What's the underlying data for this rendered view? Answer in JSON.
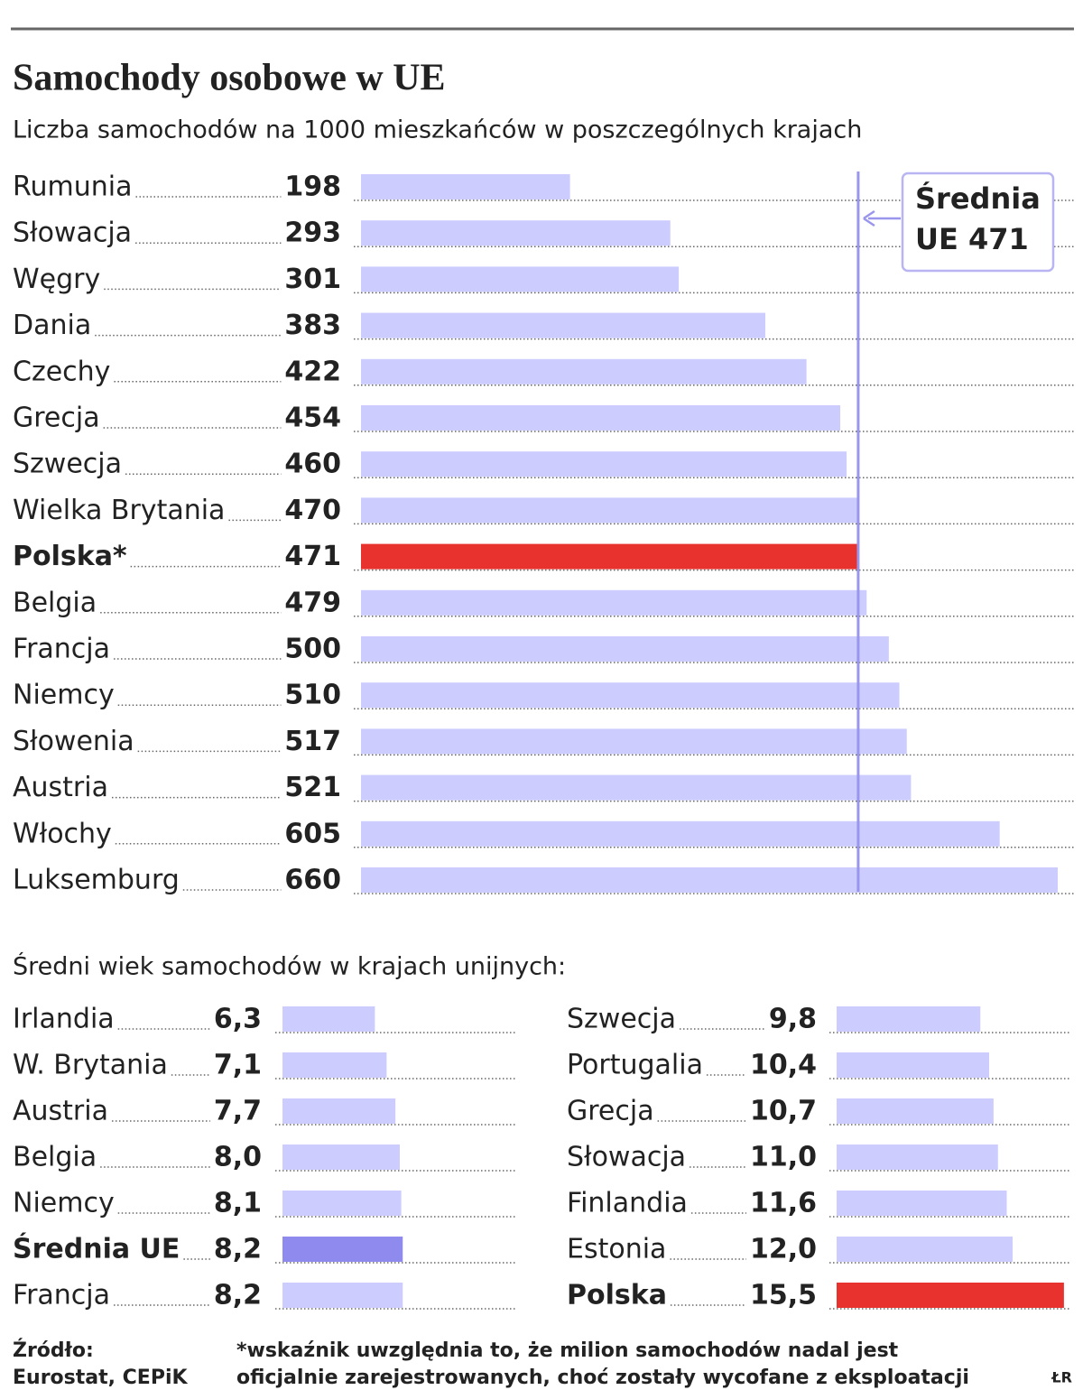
{
  "chart_data": [
    {
      "type": "bar",
      "orientation": "horizontal",
      "title": "Samochody osobowe w UE",
      "subtitle": "Liczba samochodów na 1000 mieszkańców w poszczególnych krajach",
      "categories": [
        "Rumunia",
        "Słowacja",
        "Węgry",
        "Dania",
        "Czechy",
        "Grecja",
        "Szwecja",
        "Wielka Brytania",
        "Polska*",
        "Belgia",
        "Francja",
        "Niemcy",
        "Słowenia",
        "Austria",
        "Włochy",
        "Luksemburg"
      ],
      "values": [
        198,
        293,
        301,
        383,
        422,
        454,
        460,
        470,
        471,
        479,
        500,
        510,
        517,
        521,
        605,
        660
      ],
      "color": "#ccccff",
      "colors": [
        "#ccccff",
        "#ccccff",
        "#ccccff",
        "#ccccff",
        "#ccccff",
        "#ccccff",
        "#ccccff",
        "#ccccff",
        "#e8322e",
        "#ccccff",
        "#ccccff",
        "#ccccff",
        "#ccccff",
        "#ccccff",
        "#ccccff",
        "#ccccff"
      ],
      "xlim": [
        0,
        660
      ],
      "reference_line": {
        "value": 471,
        "color": "#9a96ee",
        "label": [
          "Średnia",
          "UE 471"
        ]
      }
    },
    {
      "type": "bar",
      "orientation": "horizontal",
      "title": "Średni wiek samochodów w krajach unijnych:",
      "columns": 2,
      "categories": [
        "Irlandia",
        "W. Brytania",
        "Austria",
        "Belgia",
        "Niemcy",
        "Średnia UE",
        "Francja",
        "Szwecja",
        "Portugalia",
        "Grecja",
        "Słowacja",
        "Finlandia",
        "Estonia",
        "Polska"
      ],
      "values": [
        6.3,
        7.1,
        7.7,
        8.0,
        8.1,
        8.2,
        8.2,
        9.8,
        10.4,
        10.7,
        11.0,
        11.6,
        12.0,
        15.5
      ],
      "value_labels": [
        "6,3",
        "7,1",
        "7,7",
        "8,0",
        "8,1",
        "8,2",
        "8,2",
        "9,8",
        "10,4",
        "10,7",
        "11,0",
        "11,6",
        "12,0",
        "15,5"
      ],
      "color": "#ccccff",
      "colors": [
        "#ccccff",
        "#ccccff",
        "#ccccff",
        "#ccccff",
        "#ccccff",
        "#8f8aee",
        "#ccccff",
        "#ccccff",
        "#ccccff",
        "#ccccff",
        "#ccccff",
        "#ccccff",
        "#ccccff",
        "#e8322e"
      ],
      "xlim": [
        0,
        16
      ]
    }
  ],
  "footer": {
    "source": [
      "Źródło:",
      "Eurostat, CEPiK"
    ],
    "note": [
      "*wskaźnik uwzględnia to, że milion samochodów nadal jest",
      "oficjalnie zarejestrowanych, choć zostały wycofane z eksploatacji"
    ],
    "credit": "ŁR"
  }
}
